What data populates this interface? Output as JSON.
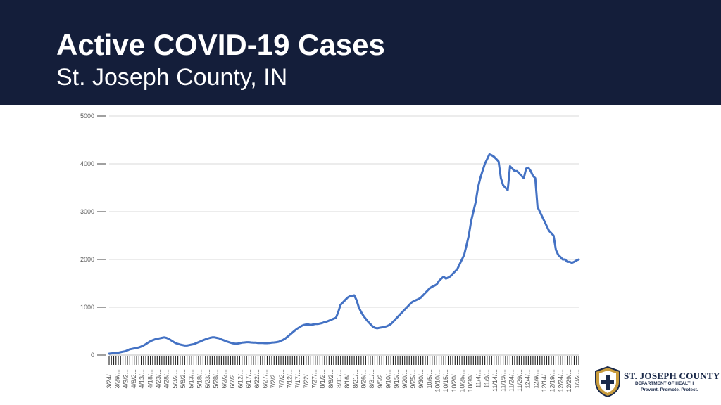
{
  "header": {
    "title": "Active COVID-19 Cases",
    "subtitle": "St. Joseph County, IN"
  },
  "chart_data": {
    "type": "line",
    "title": "Active COVID-19 Cases",
    "subtitle": "St. Joseph County, IN",
    "xlabel": "",
    "ylabel": "",
    "ylim": [
      0,
      5000
    ],
    "yticks": [
      0,
      1000,
      2000,
      3000,
      4000,
      5000
    ],
    "grid": true,
    "legend": "none",
    "x_tick_labels": [
      "3/24/...",
      "3/29/...",
      "4/3/2...",
      "4/8/2...",
      "4/13/...",
      "4/18/...",
      "4/23/...",
      "4/28/...",
      "5/3/2...",
      "5/8/2...",
      "5/13/...",
      "5/18/...",
      "5/23/...",
      "5/28/...",
      "6/2/2...",
      "6/7/2...",
      "6/12/...",
      "6/17/...",
      "6/22/...",
      "6/27/...",
      "7/2/2...",
      "7/7/2...",
      "7/12/...",
      "7/17/...",
      "7/22/...",
      "7/27/...",
      "8/1/2...",
      "8/6/2...",
      "8/11/...",
      "8/16/...",
      "8/21/...",
      "8/26/...",
      "8/31/...",
      "9/5/2...",
      "9/10/...",
      "9/15/...",
      "9/20/...",
      "9/25/...",
      "9/30/...",
      "10/5/...",
      "10/10/...",
      "10/15/...",
      "10/20/...",
      "10/25/...",
      "10/30/...",
      "11/4/...",
      "11/9/...",
      "11/14/...",
      "11/19/...",
      "11/24/...",
      "11/29/...",
      "12/4/...",
      "12/9/...",
      "12/14/...",
      "12/19/...",
      "12/24/...",
      "12/29/...",
      "1/3/2..."
    ],
    "series": [
      {
        "name": "Active cases",
        "color": "#4472c4",
        "values": [
          30,
          35,
          40,
          45,
          50,
          60,
          70,
          80,
          100,
          120,
          130,
          140,
          150,
          160,
          180,
          200,
          230,
          260,
          290,
          310,
          330,
          340,
          350,
          360,
          370,
          360,
          340,
          310,
          280,
          250,
          235,
          220,
          210,
          200,
          200,
          210,
          220,
          230,
          250,
          270,
          290,
          310,
          330,
          345,
          360,
          370,
          370,
          360,
          350,
          330,
          310,
          290,
          275,
          260,
          245,
          240,
          240,
          250,
          260,
          265,
          270,
          270,
          265,
          260,
          260,
          255,
          255,
          255,
          250,
          250,
          255,
          260,
          265,
          270,
          280,
          300,
          320,
          350,
          390,
          430,
          470,
          510,
          550,
          580,
          610,
          630,
          640,
          640,
          630,
          640,
          650,
          650,
          660,
          670,
          690,
          700,
          720,
          740,
          760,
          780,
          900,
          1050,
          1100,
          1150,
          1200,
          1230,
          1240,
          1250,
          1150,
          1000,
          900,
          820,
          760,
          700,
          650,
          600,
          570,
          560,
          570,
          580,
          590,
          600,
          620,
          650,
          700,
          750,
          800,
          850,
          900,
          950,
          1000,
          1050,
          1100,
          1130,
          1150,
          1170,
          1200,
          1250,
          1300,
          1350,
          1400,
          1430,
          1450,
          1480,
          1550,
          1600,
          1640,
          1600,
          1620,
          1650,
          1700,
          1750,
          1800,
          1900,
          2000,
          2100,
          2300,
          2500,
          2800,
          3000,
          3200,
          3500,
          3700,
          3850,
          4000,
          4100,
          4200,
          4180,
          4150,
          4100,
          4050,
          3700,
          3550,
          3500,
          3450,
          3950,
          3900,
          3850,
          3850,
          3800,
          3750,
          3700,
          3900,
          3920,
          3850,
          3750,
          3700,
          3100,
          3000,
          2900,
          2800,
          2700,
          2600,
          2550,
          2500,
          2200,
          2100,
          2050,
          2000,
          2000,
          1950,
          1950,
          1930,
          1950,
          1980,
          2000
        ]
      }
    ]
  },
  "logo": {
    "name": "ST. JOSEPH COUNTY",
    "department": "DEPARTMENT OF HEALTH",
    "tagline": "Prevent. Promote. Protect."
  }
}
